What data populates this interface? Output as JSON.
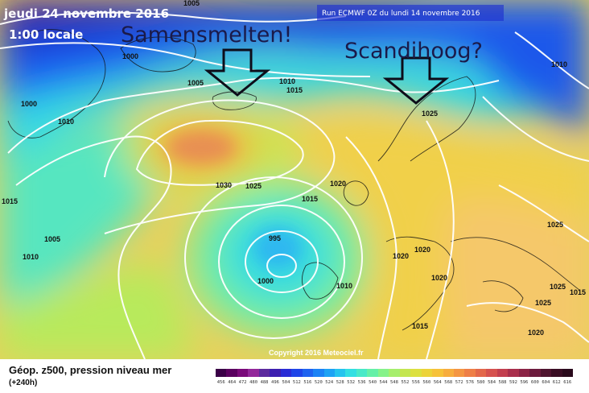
{
  "header": {
    "date": "jeudi 24 novembre 2016",
    "time": "1:00 locale",
    "run": "Run ECMWF 0Z du lundi 14 novembre 2016",
    "copyright": "Copyright 2016 Meteociel.fr"
  },
  "annotations": {
    "left": "Samensmelten!",
    "right": "Scandihoog?"
  },
  "isobars": {
    "l1": "1005",
    "l2": "1000",
    "l3": "1005",
    "l4": "1010",
    "l5": "1010",
    "l6": "1015",
    "l7": "1000",
    "l8": "1010",
    "l9": "1015",
    "l10": "1010",
    "l11": "1005",
    "l12": "1025",
    "l13": "1030",
    "l14": "1025",
    "l15": "1015",
    "l16": "1020",
    "l17": "995",
    "l18": "1000",
    "l19": "1010",
    "l20": "1020",
    "l21": "1020",
    "l22": "1020",
    "l23": "1015",
    "l24": "1025",
    "l25": "1025",
    "l26": "1025",
    "l27": "1020",
    "l28": "1015"
  },
  "legend": {
    "title": "Géop. z500, pression niveau mer",
    "subtitle": "(+240h)",
    "scale_colors": [
      "#3a0046",
      "#5a005f",
      "#7a0a7a",
      "#93279a",
      "#5c2a9e",
      "#3c1fb0",
      "#2a2cd6",
      "#1f45e8",
      "#1f63f0",
      "#1c83f5",
      "#1ea3f4",
      "#26c4ee",
      "#33dfe2",
      "#49e9c8",
      "#65f0a8",
      "#86f28a",
      "#a6ee6d",
      "#c4e650",
      "#dce040",
      "#ecd33a",
      "#f6c23a",
      "#f7ad3e",
      "#f49643",
      "#ee7f47",
      "#e3684b",
      "#d6524f",
      "#c33f4f",
      "#a92f4c",
      "#8b2445",
      "#6c1b3d",
      "#4f142f",
      "#3a0e24",
      "#2a0a1c"
    ],
    "scale_ticks": [
      "456",
      "464",
      "472",
      "480",
      "488",
      "496",
      "504",
      "512",
      "516",
      "520",
      "524",
      "528",
      "532",
      "536",
      "540",
      "544",
      "548",
      "552",
      "556",
      "560",
      "564",
      "568",
      "572",
      "576",
      "580",
      "584",
      "588",
      "592",
      "596",
      "600",
      "604",
      "612",
      "616"
    ]
  }
}
